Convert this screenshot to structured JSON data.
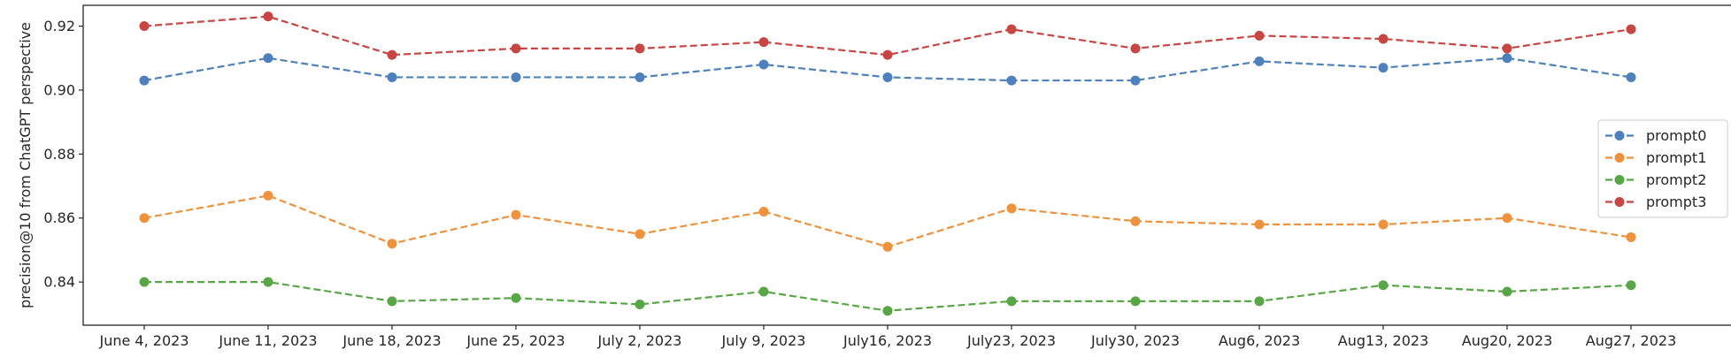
{
  "chart_data": {
    "type": "line",
    "title": "",
    "xlabel": "",
    "ylabel": "precision@10 from ChatGPT perspective",
    "categories": [
      "June 4, 2023",
      "June 11, 2023",
      "June 18, 2023",
      "June 25, 2023",
      "July 2, 2023",
      "July 9, 2023",
      "July16, 2023",
      "July23, 2023",
      "July30, 2023",
      "Aug6, 2023",
      "Aug13, 2023",
      "Aug20, 2023",
      "Aug27, 2023"
    ],
    "yticks": [
      "0.84",
      "0.86",
      "0.88",
      "0.90",
      "0.92"
    ],
    "ylim": [
      0.8265,
      0.9265
    ],
    "grid": false,
    "legend_position": "center-right",
    "line_style": "dashed",
    "marker": "circle",
    "series": [
      {
        "name": "prompt0",
        "color": "#4c81be",
        "values": [
          0.903,
          0.91,
          0.904,
          0.904,
          0.904,
          0.908,
          0.904,
          0.903,
          0.903,
          0.909,
          0.907,
          0.91,
          0.904
        ]
      },
      {
        "name": "prompt1",
        "color": "#f0923c",
        "values": [
          0.86,
          0.867,
          0.852,
          0.861,
          0.855,
          0.862,
          0.851,
          0.863,
          0.859,
          0.858,
          0.858,
          0.86,
          0.854
        ]
      },
      {
        "name": "prompt2",
        "color": "#57a845",
        "values": [
          0.84,
          0.84,
          0.834,
          0.835,
          0.833,
          0.837,
          0.831,
          0.834,
          0.834,
          0.834,
          0.839,
          0.837,
          0.839
        ]
      },
      {
        "name": "prompt3",
        "color": "#c94542",
        "values": [
          0.92,
          0.923,
          0.911,
          0.913,
          0.913,
          0.915,
          0.911,
          0.919,
          0.913,
          0.917,
          0.916,
          0.913,
          0.919
        ]
      }
    ]
  }
}
